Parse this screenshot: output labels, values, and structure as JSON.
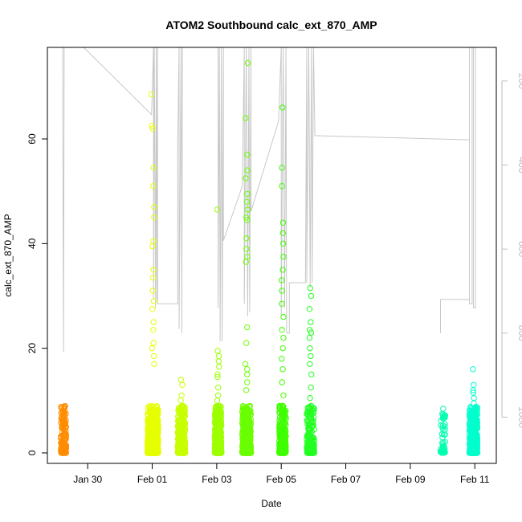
{
  "chart_data": {
    "type": "scatter",
    "title": "ATOM2 Southbound calc_ext_870_AMP",
    "xlabel": "Date",
    "ylabel": "calc_ext_870_AMP",
    "xlim": [
      "2020-01-28 18:00",
      "2020-02-11 16:00"
    ],
    "ylim": [
      -2,
      77.5
    ],
    "x_ticks": [
      {
        "value": "2020-01-30",
        "label": "Jan 30"
      },
      {
        "value": "2020-02-01",
        "label": "Feb 01"
      },
      {
        "value": "2020-02-03",
        "label": "Feb 03"
      },
      {
        "value": "2020-02-05",
        "label": "Feb 05"
      },
      {
        "value": "2020-02-07",
        "label": "Feb 07"
      },
      {
        "value": "2020-02-09",
        "label": "Feb 09"
      },
      {
        "value": "2020-02-11",
        "label": "Feb 11"
      }
    ],
    "y_ticks": [
      0,
      20,
      40,
      60
    ],
    "secondary_axis": {
      "side": "right",
      "range": [
        1110,
        120
      ],
      "reversed": true,
      "ticks": [
        200,
        400,
        600,
        800,
        1000
      ],
      "color": "#bdbdbd"
    },
    "grid": false,
    "legend": "none",
    "marker": "open-circle",
    "clusters": [
      {
        "t_start": "2020-01-29 04:00",
        "t_end": "2020-01-29 08:00",
        "color": "#ff8c00",
        "n": 180,
        "spikes": [
          6.0,
          4.4
        ]
      },
      {
        "t_start": "2020-01-31 20:30",
        "t_end": "2020-02-01 04:30",
        "color": "#e5ff00",
        "n": 800,
        "spikes": [
          68.5,
          62.5,
          62.0,
          54.5,
          51.0,
          47.0,
          45.0,
          40.5,
          39.5,
          35.0,
          33.5,
          31.0,
          29.0,
          27.5,
          25.0,
          23.5,
          21.0,
          20.0,
          18.5,
          17.0
        ]
      },
      {
        "t_start": "2020-02-01 19:00",
        "t_end": "2020-02-02 00:30",
        "color": "#c8ff00",
        "n": 350,
        "spikes": [
          14.0,
          13.0,
          11.0,
          10.0,
          9.0,
          8.0
        ]
      },
      {
        "t_start": "2020-02-02 22:30",
        "t_end": "2020-02-03 03:30",
        "color": "#9dff00",
        "n": 450,
        "spikes": [
          46.5,
          19.5,
          18.5,
          17.5,
          16.5,
          15.0,
          14.5,
          12.5,
          11.0,
          10.0,
          9.0
        ]
      },
      {
        "t_start": "2020-02-03 19:00",
        "t_end": "2020-02-04 01:30",
        "color": "#6aff00",
        "n": 500,
        "spikes": [
          74.5,
          64.0,
          57.0,
          54.0,
          52.5,
          49.5,
          48.0,
          46.5,
          45.0,
          44.5,
          41.0,
          39.0,
          37.5,
          36.5,
          24.0,
          21.0,
          17.0,
          16.0,
          15.0,
          13.5,
          12.0
        ]
      },
      {
        "t_start": "2020-02-04 22:30",
        "t_end": "2020-02-05 03:30",
        "color": "#3fff00",
        "n": 300,
        "spikes": [
          66.0,
          54.5,
          51.0,
          44.0,
          42.0,
          40.0,
          37.5,
          35.0,
          33.0,
          31.0,
          28.5,
          26.0,
          23.5,
          22.0,
          20.0,
          18.0,
          16.0,
          13.5,
          11.0,
          9.0,
          8.5,
          8.0,
          7.5
        ]
      },
      {
        "t_start": "2020-02-05 19:00",
        "t_end": "2020-02-06 00:30",
        "color": "#22ff22",
        "n": 220,
        "spikes": [
          31.5,
          30.0,
          27.5,
          25.0,
          23.5,
          23.0,
          22.0,
          20.0,
          18.5,
          17.0,
          15.0,
          12.5,
          10.5,
          9.0,
          8.0,
          7.0,
          6.0,
          5.5
        ]
      },
      {
        "t_start": "2020-02-09 22:30",
        "t_end": "2020-02-10 02:00",
        "color": "#00ffb0",
        "n": 50,
        "spikes": [
          2.0,
          1.5
        ]
      },
      {
        "t_start": "2020-02-10 20:00",
        "t_end": "2020-02-11 02:00",
        "color": "#00ffcc",
        "n": 450,
        "spikes": [
          16.0,
          13.0,
          12.0,
          11.5,
          10.5,
          9.5,
          8.5,
          7.5
        ]
      }
    ],
    "secondary_line": {
      "color": "#c8c8c8",
      "points": [
        [
          "2020-01-29 05:30",
          120
        ],
        [
          "2020-01-29 05:30",
          290
        ],
        [
          "2020-01-29 06:00",
          845
        ],
        [
          "2020-01-29 06:30",
          120
        ],
        [
          "2020-01-29 06:30",
          120
        ],
        [
          "2020-01-29 21:00",
          120
        ],
        [
          "2020-01-31 23:30",
          280
        ],
        [
          "2020-02-01 01:00",
          120
        ],
        [
          "2020-02-01 01:00",
          720
        ],
        [
          "2020-02-01 01:30",
          120
        ],
        [
          "2020-02-01 02:30",
          740
        ],
        [
          "2020-02-01 03:00",
          120
        ],
        [
          "2020-02-01 03:30",
          720
        ],
        [
          "2020-02-01 04:00",
          120
        ],
        [
          "2020-02-01 04:00",
          730
        ],
        [
          "2020-02-01 19:00",
          730
        ],
        [
          "2020-02-01 19:00",
          360
        ],
        [
          "2020-02-01 20:00",
          120
        ],
        [
          "2020-02-01 20:00",
          790
        ],
        [
          "2020-02-01 21:30",
          120
        ],
        [
          "2020-02-01 22:00",
          800
        ],
        [
          "2020-02-01 22:30",
          120
        ],
        [
          "2020-02-03 01:00",
          120
        ],
        [
          "2020-02-03 01:00",
          740
        ],
        [
          "2020-02-03 02:00",
          120
        ],
        [
          "2020-02-03 02:30",
          820
        ],
        [
          "2020-02-03 03:30",
          120
        ],
        [
          "2020-02-03 04:00",
          820
        ],
        [
          "2020-02-03 05:00",
          120
        ],
        [
          "2020-02-03 05:00",
          580
        ],
        [
          "2020-02-03 19:00",
          450
        ],
        [
          "2020-02-03 20:30",
          120
        ],
        [
          "2020-02-03 20:30",
          730
        ],
        [
          "2020-02-03 22:00",
          120
        ],
        [
          "2020-02-03 23:00",
          760
        ],
        [
          "2020-02-04 00:00",
          120
        ],
        [
          "2020-02-04 00:30",
          750
        ],
        [
          "2020-02-04 01:30",
          120
        ],
        [
          "2020-02-04 01:30",
          510
        ],
        [
          "2020-02-04 22:00",
          295
        ],
        [
          "2020-02-05 00:00",
          120
        ],
        [
          "2020-02-05 00:00",
          760
        ],
        [
          "2020-02-05 01:30",
          120
        ],
        [
          "2020-02-05 02:30",
          740
        ],
        [
          "2020-02-05 03:30",
          120
        ],
        [
          "2020-02-05 04:00",
          800
        ],
        [
          "2020-02-05 06:00",
          800
        ],
        [
          "2020-02-05 06:00",
          680
        ],
        [
          "2020-02-05 18:00",
          680
        ],
        [
          "2020-02-05 19:00",
          120
        ],
        [
          "2020-02-05 19:00",
          680
        ],
        [
          "2020-02-05 20:30",
          120
        ],
        [
          "2020-02-05 21:30",
          690
        ],
        [
          "2020-02-05 22:30",
          120
        ],
        [
          "2020-02-05 23:00",
          680
        ],
        [
          "2020-02-06 00:00",
          120
        ],
        [
          "2020-02-06 01:00",
          330
        ],
        [
          "2020-02-10 20:00",
          340
        ],
        [
          "2020-02-10 20:00",
          120
        ],
        [
          "2020-02-10 20:00",
          730
        ],
        [
          "2020-02-10 22:00",
          730
        ],
        [
          "2020-02-10 22:00",
          120
        ],
        [
          "2020-02-10 23:00",
          120
        ],
        [
          "2020-02-10 23:00",
          740
        ],
        [
          "2020-02-11 00:30",
          740
        ],
        [
          "2020-02-11 00:30",
          120
        ]
      ],
      "extra_segments": [
        [
          [
            "2020-02-09 22:30",
            800
          ],
          [
            "2020-02-09 22:30",
            720
          ],
          [
            "2020-02-10 20:30",
            720
          ]
        ]
      ]
    }
  }
}
